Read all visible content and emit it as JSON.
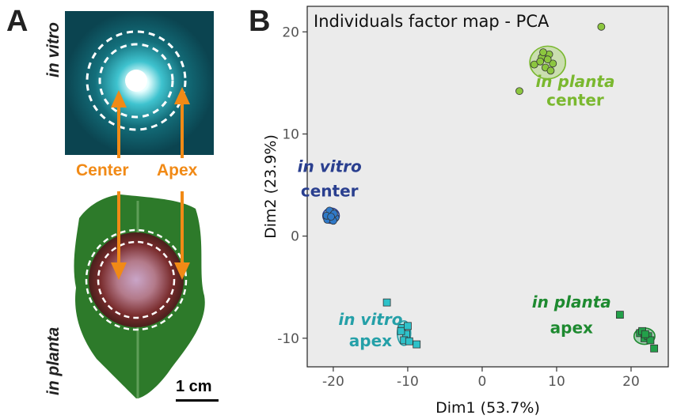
{
  "panel_a": {
    "letter": "A",
    "in_vitro_label": "in vitro",
    "in_planta_label": "in planta",
    "center_label": "Center",
    "apex_label": "Apex",
    "scale_label": "1 cm",
    "colors": {
      "arrow": "#f18a16",
      "culture_bg": "#0a4f5f",
      "leaf": "#2d7a2a",
      "lesion": "#6e2a2a"
    }
  },
  "panel_b": {
    "letter": "B"
  },
  "chart_data": {
    "type": "scatter",
    "title": "Individuals factor map - PCA",
    "xlabel": "Dim1 (53.7%)",
    "ylabel": "Dim2 (23.9%)",
    "xlim": [
      -23.5,
      25
    ],
    "ylim": [
      -12.8,
      22.5
    ],
    "xticks": [
      "-20",
      "-10",
      "0",
      "10",
      "20"
    ],
    "yticks": [
      "-10",
      "0",
      "10",
      "20"
    ],
    "grid": false,
    "background": "#ebebeb",
    "groups": [
      {
        "label_line1": "in vitro",
        "label_line2": "center",
        "color": "#2a3f8f",
        "point_color": "#2f79c8",
        "marker": "circle",
        "centroid": [
          -20.3,
          2.0
        ],
        "ellipse": [
          1.1,
          0.75
        ],
        "x": [
          -20.8,
          -20.2,
          -19.7,
          -20.5,
          -20.0,
          -20.9,
          -19.9,
          -20.3
        ],
        "y": [
          1.6,
          2.3,
          1.8,
          2.5,
          1.5,
          2.0,
          2.2,
          1.9
        ]
      },
      {
        "label_line1": "in planta",
        "label_line2": "center",
        "color": "#7ab82f",
        "point_color": "#8cc63f",
        "marker": "circle",
        "centroid": [
          8.8,
          17.0
        ],
        "ellipse": [
          2.4,
          1.6
        ],
        "x": [
          16.0,
          7.0,
          5.0,
          8.0,
          8.5,
          9.0,
          9.5,
          8.2,
          8.8,
          9.2,
          7.8
        ],
        "y": [
          20.5,
          16.8,
          14.2,
          17.5,
          16.5,
          17.8,
          16.9,
          18.0,
          17.3,
          16.2,
          17.1
        ]
      },
      {
        "label_line1": "in vitro",
        "label_line2": "apex",
        "color": "#25a0a8",
        "point_color": "#2ec2c9",
        "marker": "square",
        "centroid": [
          -10.5,
          -9.5
        ],
        "ellipse": [
          0.9,
          1.2
        ],
        "x": [
          -12.8,
          -10.8,
          -10.2,
          -10.5,
          -9.8,
          -10.9,
          -8.8,
          -10.0
        ],
        "y": [
          -6.5,
          -9.0,
          -9.6,
          -10.2,
          -10.3,
          -9.3,
          -10.6,
          -8.8
        ]
      },
      {
        "label_line1": "in planta",
        "label_line2": "apex",
        "color": "#1e8a30",
        "point_color": "#23a04a",
        "marker": "square",
        "centroid": [
          21.8,
          -9.8
        ],
        "ellipse": [
          1.4,
          0.8
        ],
        "x": [
          18.5,
          21.2,
          21.8,
          22.3,
          21.5,
          22.6,
          23.1,
          21.9
        ],
        "y": [
          -7.7,
          -9.5,
          -10.0,
          -9.8,
          -9.3,
          -10.2,
          -11.0,
          -9.6
        ]
      }
    ]
  }
}
